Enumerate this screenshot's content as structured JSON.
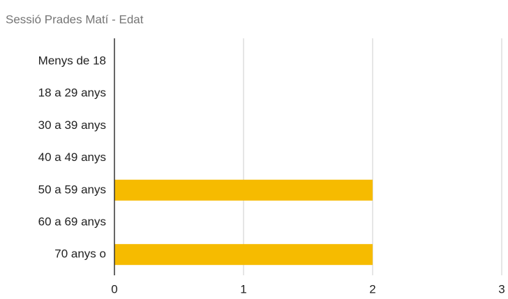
{
  "chart_data": {
    "type": "bar",
    "orientation": "horizontal",
    "title": "Sessió Prades Matí - Edat",
    "categories": [
      "Menys de 18",
      "18 a 29 anys",
      "30 a 39 anys",
      "40 a 49 anys",
      "50 a 59 anys",
      "60 a 69 anys",
      "70 anys o"
    ],
    "values": [
      0,
      0,
      0,
      0,
      2,
      0,
      2
    ],
    "color": "#f6bb00",
    "xlim": [
      0,
      3
    ],
    "xticks": [
      0,
      1,
      2,
      3
    ],
    "grid": true
  }
}
